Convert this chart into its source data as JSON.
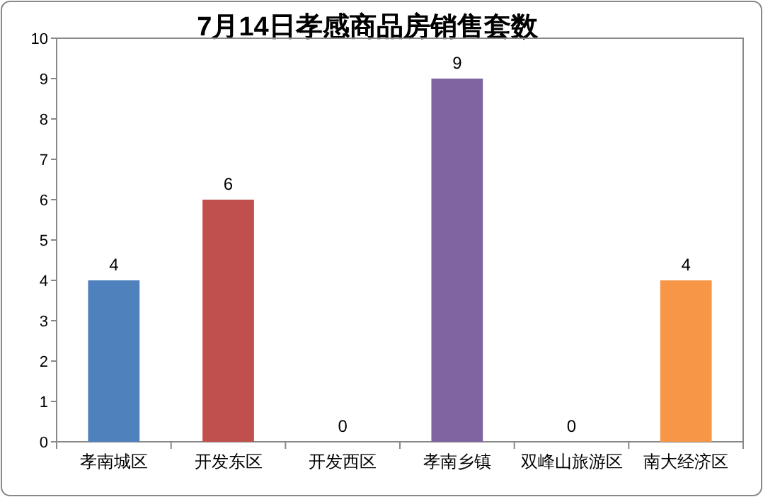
{
  "chart_data": {
    "type": "bar",
    "title": "7月14日孝感商品房销售套数",
    "categories": [
      "孝南城区",
      "开发东区",
      "开发西区",
      "孝南乡镇",
      "双峰山旅游区",
      "南大经济区"
    ],
    "values": [
      4,
      6,
      0,
      9,
      0,
      4
    ],
    "colors": [
      "#4f81bd",
      "#c0504d",
      "#9bbb59",
      "#8064a2",
      "#4bacc6",
      "#f79646"
    ],
    "ylim": [
      0,
      10
    ],
    "yticks": [
      0,
      1,
      2,
      3,
      4,
      5,
      6,
      7,
      8,
      9,
      10
    ],
    "grid": false,
    "data_labels": true
  }
}
